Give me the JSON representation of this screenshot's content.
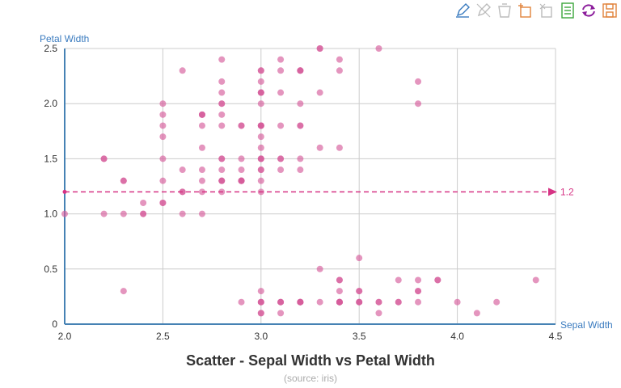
{
  "colors": {
    "point": "#d65c9b",
    "markline": "#d63384",
    "axis": "#4682b4",
    "axis_name": "#3a7bbf",
    "grid": "#cccccc",
    "toolbox": {
      "mark-icon": "#3a7bbf",
      "markundo-icon": "#bbbbbb",
      "markclear-icon": "#bbbbbb",
      "datazoom-icon": "#e0823a",
      "datazoomreset-icon": "#bbbbbb",
      "dataview-icon": "#3aa63a",
      "restore-icon": "#8b1c9b",
      "saveasimage-icon": "#e0823a"
    }
  },
  "toolbox": [
    "mark-icon",
    "markundo-icon",
    "markclear-icon",
    "datazoom-icon",
    "datazoomreset-icon",
    "dataview-icon",
    "restore-icon",
    "saveasimage-icon"
  ],
  "chart_data": {
    "type": "scatter",
    "title": "Scatter - Sepal Width vs Petal Width",
    "subtitle": "(source: iris)",
    "xlabel": "Sepal Width",
    "ylabel": "Petal Width",
    "xlim": [
      2.0,
      4.5
    ],
    "ylim": [
      0,
      2.5
    ],
    "xticks": [
      "2.0",
      "2.5",
      "3.0",
      "3.5",
      "4.0",
      "4.5"
    ],
    "yticks": [
      "0",
      "0.5",
      "1.0",
      "1.5",
      "2.0",
      "2.5"
    ],
    "grid": true,
    "markline": {
      "axis": "y",
      "value": 1.2,
      "label": "1.2"
    },
    "points": [
      [
        3.5,
        0.2
      ],
      [
        3.0,
        0.2
      ],
      [
        3.2,
        0.2
      ],
      [
        3.1,
        0.2
      ],
      [
        3.6,
        0.2
      ],
      [
        3.9,
        0.4
      ],
      [
        3.4,
        0.3
      ],
      [
        3.4,
        0.2
      ],
      [
        2.9,
        0.2
      ],
      [
        3.1,
        0.1
      ],
      [
        3.7,
        0.2
      ],
      [
        3.4,
        0.2
      ],
      [
        3.0,
        0.1
      ],
      [
        3.0,
        0.1
      ],
      [
        4.0,
        0.2
      ],
      [
        4.4,
        0.4
      ],
      [
        3.9,
        0.4
      ],
      [
        3.5,
        0.3
      ],
      [
        3.8,
        0.3
      ],
      [
        3.8,
        0.3
      ],
      [
        3.4,
        0.2
      ],
      [
        3.7,
        0.4
      ],
      [
        3.6,
        0.2
      ],
      [
        3.3,
        0.5
      ],
      [
        3.4,
        0.2
      ],
      [
        3.0,
        0.2
      ],
      [
        3.4,
        0.4
      ],
      [
        3.5,
        0.2
      ],
      [
        3.4,
        0.2
      ],
      [
        3.2,
        0.2
      ],
      [
        3.1,
        0.2
      ],
      [
        3.4,
        0.4
      ],
      [
        4.1,
        0.1
      ],
      [
        4.2,
        0.2
      ],
      [
        3.1,
        0.2
      ],
      [
        3.2,
        0.2
      ],
      [
        3.5,
        0.2
      ],
      [
        3.6,
        0.1
      ],
      [
        3.0,
        0.2
      ],
      [
        3.4,
        0.2
      ],
      [
        3.5,
        0.3
      ],
      [
        2.3,
        0.3
      ],
      [
        3.2,
        0.2
      ],
      [
        3.5,
        0.6
      ],
      [
        3.8,
        0.4
      ],
      [
        3.0,
        0.3
      ],
      [
        3.8,
        0.2
      ],
      [
        3.2,
        0.2
      ],
      [
        3.7,
        0.2
      ],
      [
        3.3,
        0.2
      ],
      [
        3.2,
        1.4
      ],
      [
        3.2,
        1.5
      ],
      [
        3.1,
        1.5
      ],
      [
        2.3,
        1.3
      ],
      [
        2.8,
        1.5
      ],
      [
        2.8,
        1.3
      ],
      [
        3.3,
        1.6
      ],
      [
        2.4,
        1.0
      ],
      [
        2.9,
        1.3
      ],
      [
        2.7,
        1.4
      ],
      [
        2.0,
        1.0
      ],
      [
        3.0,
        1.5
      ],
      [
        2.2,
        1.0
      ],
      [
        2.9,
        1.4
      ],
      [
        2.9,
        1.3
      ],
      [
        3.1,
        1.4
      ],
      [
        3.0,
        1.5
      ],
      [
        2.7,
        1.0
      ],
      [
        2.2,
        1.5
      ],
      [
        2.5,
        1.1
      ],
      [
        3.2,
        1.8
      ],
      [
        2.8,
        1.3
      ],
      [
        2.5,
        1.5
      ],
      [
        2.8,
        1.2
      ],
      [
        2.9,
        1.3
      ],
      [
        3.0,
        1.4
      ],
      [
        2.8,
        1.4
      ],
      [
        3.0,
        1.7
      ],
      [
        2.9,
        1.5
      ],
      [
        2.6,
        1.0
      ],
      [
        2.4,
        1.1
      ],
      [
        2.4,
        1.0
      ],
      [
        2.7,
        1.2
      ],
      [
        2.7,
        1.6
      ],
      [
        3.0,
        1.5
      ],
      [
        3.4,
        1.6
      ],
      [
        3.1,
        1.5
      ],
      [
        2.3,
        1.3
      ],
      [
        3.0,
        1.3
      ],
      [
        2.5,
        1.3
      ],
      [
        2.6,
        1.2
      ],
      [
        3.0,
        1.4
      ],
      [
        2.6,
        1.2
      ],
      [
        2.3,
        1.0
      ],
      [
        2.7,
        1.3
      ],
      [
        3.0,
        1.2
      ],
      [
        2.9,
        1.3
      ],
      [
        2.9,
        1.3
      ],
      [
        2.5,
        1.1
      ],
      [
        2.8,
        1.3
      ],
      [
        3.3,
        2.5
      ],
      [
        2.7,
        1.9
      ],
      [
        3.0,
        2.1
      ],
      [
        2.9,
        1.8
      ],
      [
        3.0,
        2.2
      ],
      [
        3.0,
        2.1
      ],
      [
        2.5,
        1.7
      ],
      [
        2.9,
        1.8
      ],
      [
        2.5,
        1.8
      ],
      [
        3.6,
        2.5
      ],
      [
        3.2,
        2.0
      ],
      [
        2.7,
        1.9
      ],
      [
        3.0,
        2.1
      ],
      [
        2.5,
        2.0
      ],
      [
        2.8,
        2.4
      ],
      [
        3.2,
        2.3
      ],
      [
        3.0,
        1.8
      ],
      [
        3.8,
        2.2
      ],
      [
        2.6,
        2.3
      ],
      [
        2.2,
        1.5
      ],
      [
        3.2,
        2.3
      ],
      [
        2.8,
        2.0
      ],
      [
        2.8,
        2.0
      ],
      [
        2.7,
        1.8
      ],
      [
        3.3,
        2.1
      ],
      [
        3.2,
        1.8
      ],
      [
        2.8,
        1.8
      ],
      [
        3.0,
        1.8
      ],
      [
        2.8,
        2.1
      ],
      [
        3.0,
        1.6
      ],
      [
        2.8,
        1.9
      ],
      [
        3.8,
        2.0
      ],
      [
        2.8,
        2.2
      ],
      [
        2.8,
        1.5
      ],
      [
        2.6,
        1.4
      ],
      [
        3.0,
        2.3
      ],
      [
        3.4,
        2.4
      ],
      [
        3.1,
        1.8
      ],
      [
        3.0,
        1.8
      ],
      [
        3.1,
        2.1
      ],
      [
        3.1,
        2.4
      ],
      [
        3.1,
        2.3
      ],
      [
        2.7,
        1.9
      ],
      [
        3.2,
        2.3
      ],
      [
        3.3,
        2.5
      ],
      [
        3.0,
        2.3
      ],
      [
        2.5,
        1.9
      ],
      [
        3.0,
        2.0
      ],
      [
        3.4,
        2.3
      ],
      [
        3.0,
        1.8
      ]
    ]
  }
}
